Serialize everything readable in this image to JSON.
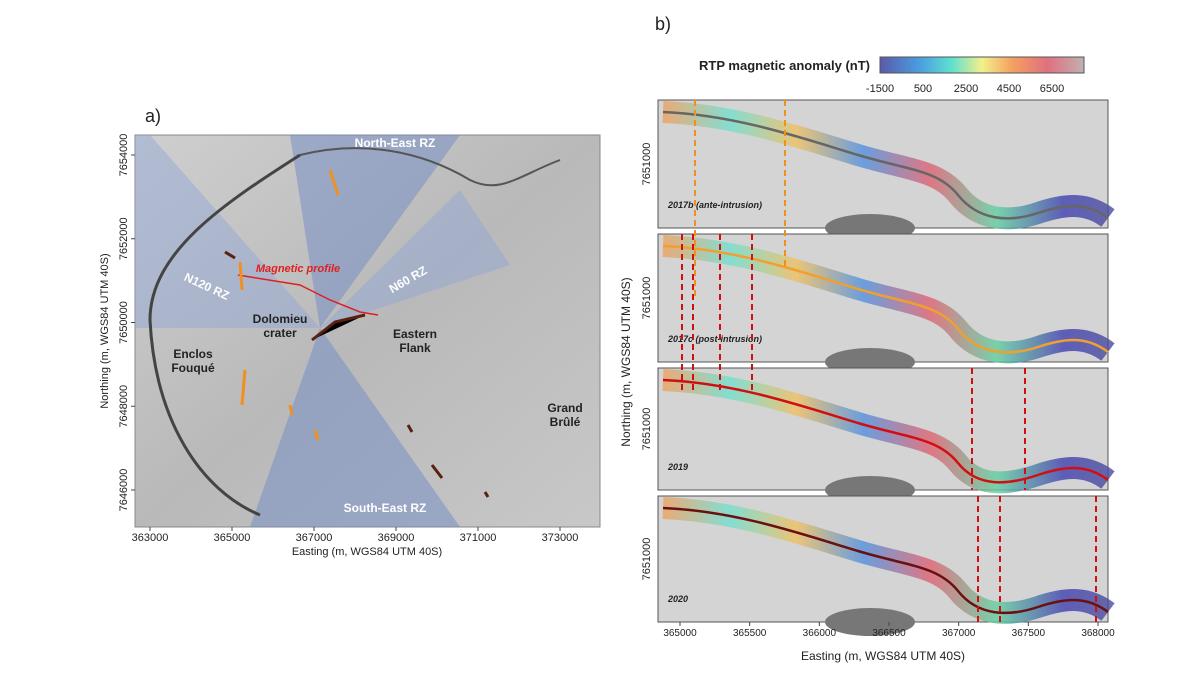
{
  "panel_a": {
    "letter": "a)",
    "labels": {
      "north_east": "North-East RZ",
      "n120": "N120 RZ",
      "profile": "Magnetic profile",
      "n60": "N60 RZ",
      "dolomieu": [
        "Dolomieu",
        "crater"
      ],
      "eastern": [
        "Eastern",
        "Flank"
      ],
      "enclos": [
        "Enclos",
        "Fouqué"
      ],
      "grand": [
        "Grand",
        "Brûlé"
      ],
      "south_east": "South-East RZ"
    },
    "xticks": [
      363000,
      365000,
      367000,
      369000,
      371000,
      373000
    ],
    "yticks": [
      7654000,
      7652000,
      7650000,
      7648000,
      7646000
    ],
    "xlabel": "Easting (m, WGS84 UTM 40S)",
    "ylabel": "Northing (m, WGS84 UTM 40S)"
  },
  "panel_b": {
    "letter": "b)",
    "colorbar_title": "RTP magnetic anomaly (nT)",
    "colorbar_ticks": [
      -1500,
      500,
      2500,
      4500,
      6500
    ],
    "strips": [
      {
        "label": "2017b (ante-intrusion)",
        "ytick": 7651000
      },
      {
        "label": "2017c (post-intrusion)",
        "ytick": 7651000
      },
      {
        "label": "2019",
        "ytick": 7651000
      },
      {
        "label": "2020",
        "ytick": 7651000
      }
    ],
    "xticks": [
      365000,
      365500,
      366000,
      366500,
      367000,
      367500,
      368000
    ],
    "xlabel": "Easting (m, WGS84 UTM 40S)",
    "ylabel": "Northing (m, WGS84 UTM 40S)"
  }
}
